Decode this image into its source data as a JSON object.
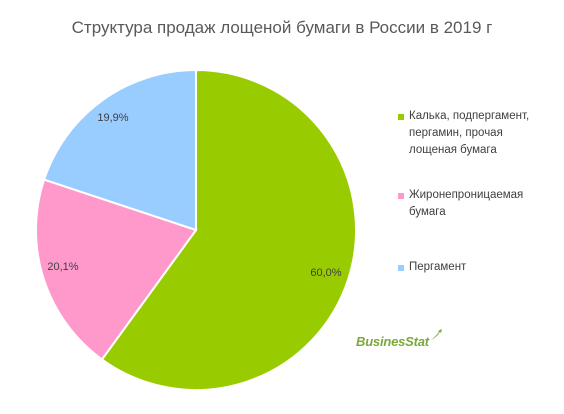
{
  "chart_data": {
    "type": "pie",
    "title": "Структура продаж лощеной бумаги в России в 2019 г",
    "slices": [
      {
        "label": "Калька, подпергамент, пергамин, прочая лощеная бумага",
        "value": 60.0,
        "display": "60,0%",
        "color": "#99cc00"
      },
      {
        "label": "Жиронепроницаемая бумага",
        "value": 20.1,
        "display": "20,1%",
        "color": "#ff99cc"
      },
      {
        "label": "Пергамент",
        "value": 19.9,
        "display": "19,9%",
        "color": "#99ccff"
      }
    ],
    "legend_position": "right"
  },
  "legend": {
    "items": [
      {
        "lines": [
          "Калька, подпергамент,",
          "пергамин, прочая",
          "лощеная бумага"
        ],
        "color": "#99cc00"
      },
      {
        "lines": [
          "Жиронепроницаемая",
          "бумага"
        ],
        "color": "#ff99cc"
      },
      {
        "lines": [
          "Пергамент"
        ],
        "color": "#99ccff"
      }
    ]
  },
  "logo": {
    "text": "BusinesStat",
    "color": "#7aa83a"
  }
}
